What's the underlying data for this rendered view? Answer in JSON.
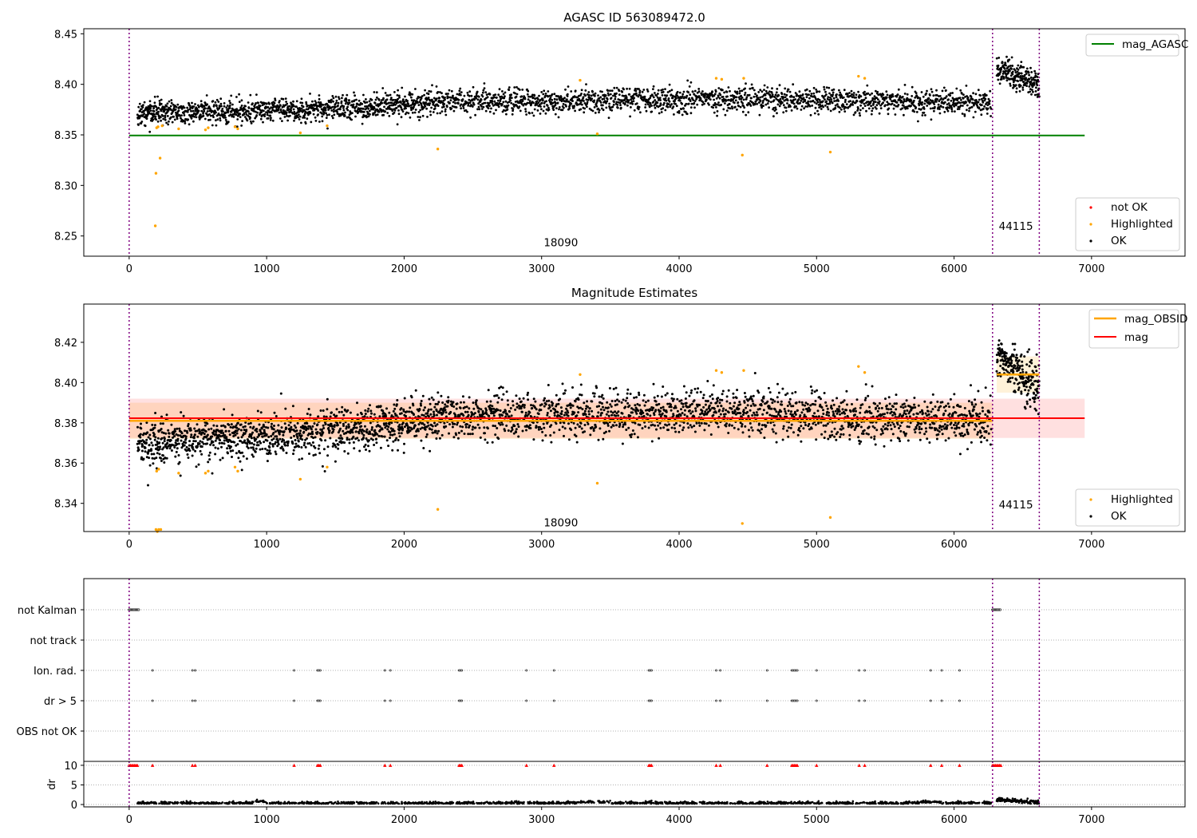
{
  "chart_data": [
    {
      "type": "scatter",
      "title": "AGASC ID 563089472.0",
      "xlim": [
        -330,
        7680
      ],
      "ylim": [
        8.23,
        8.455
      ],
      "xticks": [
        0,
        1000,
        2000,
        3000,
        4000,
        5000,
        6000,
        7000
      ],
      "yticks": [
        8.25,
        8.3,
        8.35,
        8.4,
        8.45
      ],
      "xtick_labels": [
        "0",
        "1000",
        "2000",
        "3000",
        "4000",
        "5000",
        "6000",
        "7000"
      ],
      "ytick_labels": [
        "8.25",
        "8.30",
        "8.35",
        "8.40",
        "8.45"
      ],
      "obsid_boundaries": [
        0,
        6280,
        6620
      ],
      "obsid_labels": [
        {
          "text": "18090",
          "x": 3140,
          "y": 8.24
        },
        {
          "text": "44115",
          "x": 6450,
          "y": 8.256
        }
      ],
      "reference_lines": [
        {
          "name": "mag_AGASC",
          "y": 8.3494,
          "x_range": [
            0,
            6950
          ],
          "color": "#008000"
        }
      ],
      "series": [
        {
          "name": "OK",
          "color": "#000000",
          "segments": [
            {
              "x_range": [
                60,
                300
              ],
              "y_start": 8.372,
              "y_end": 8.373,
              "scatter": 0.006,
              "n": 150
            },
            {
              "x_range": [
                300,
                900
              ],
              "y_start": 8.372,
              "y_end": 8.374,
              "scatter": 0.006,
              "n": 320
            },
            {
              "x_range": [
                900,
                1700
              ],
              "y_start": 8.374,
              "y_end": 8.377,
              "scatter": 0.006,
              "n": 420
            },
            {
              "x_range": [
                1700,
                2300
              ],
              "y_start": 8.378,
              "y_end": 8.383,
              "scatter": 0.006,
              "n": 330
            },
            {
              "x_range": [
                2300,
                4500
              ],
              "y_start": 8.383,
              "y_end": 8.386,
              "scatter": 0.006,
              "n": 1000
            },
            {
              "x_range": [
                4500,
                6270
              ],
              "y_start": 8.385,
              "y_end": 8.382,
              "scatter": 0.006,
              "n": 800
            },
            {
              "x_range": [
                6310,
                6620
              ],
              "y_start": 8.416,
              "y_end": 8.398,
              "scatter": 0.006,
              "n": 220
            }
          ]
        },
        {
          "name": "Highlighted",
          "color": "#FFA500",
          "points": [
            [
              190,
              8.26
            ],
            [
              195,
              8.312
            ],
            [
              200,
              8.357
            ],
            [
              210,
              8.358
            ],
            [
              225,
              8.327
            ],
            [
              240,
              8.359
            ],
            [
              360,
              8.356
            ],
            [
              555,
              8.355
            ],
            [
              575,
              8.357
            ],
            [
              770,
              8.358
            ],
            [
              790,
              8.356
            ],
            [
              1245,
              8.352
            ],
            [
              1440,
              8.359
            ],
            [
              2245,
              8.336
            ],
            [
              3280,
              8.404
            ],
            [
              3405,
              8.351
            ],
            [
              4270,
              8.406
            ],
            [
              4310,
              8.405
            ],
            [
              4460,
              8.33
            ],
            [
              4470,
              8.406
            ],
            [
              5100,
              8.333
            ],
            [
              5305,
              8.408
            ],
            [
              5350,
              8.406
            ]
          ]
        },
        {
          "name": "not OK",
          "color": "#FF0000",
          "points": []
        }
      ],
      "legend_upper": [
        "mag_AGASC"
      ],
      "legend_lower": [
        "not OK",
        "Highlighted",
        "OK"
      ],
      "legend_upper_placement": "upper right",
      "legend_lower_placement": "lower right"
    },
    {
      "type": "scatter",
      "title": "Magnitude Estimates",
      "xlim": [
        -330,
        7680
      ],
      "ylim": [
        8.326,
        8.439
      ],
      "xticks": [
        0,
        1000,
        2000,
        3000,
        4000,
        5000,
        6000,
        7000
      ],
      "yticks": [
        8.34,
        8.36,
        8.38,
        8.4,
        8.42
      ],
      "xtick_labels": [
        "0",
        "1000",
        "2000",
        "3000",
        "4000",
        "5000",
        "6000",
        "7000"
      ],
      "ytick_labels": [
        "8.34",
        "8.36",
        "8.38",
        "8.40",
        "8.42"
      ],
      "obsid_boundaries": [
        0,
        6280,
        6620
      ],
      "obsid_labels": [
        {
          "text": "18090",
          "x": 3140,
          "y": 8.3285
        },
        {
          "text": "44115",
          "x": 6450,
          "y": 8.3375
        }
      ],
      "bands": [
        {
          "name": "mag_OBSID",
          "x_range": [
            0,
            6280
          ],
          "y_range": [
            8.372,
            8.39
          ],
          "color": "#FFA500",
          "opacity": 0.15
        },
        {
          "name": "mag_OBSID",
          "x_range": [
            6310,
            6620
          ],
          "y_range": [
            8.395,
            8.413
          ],
          "color": "#FFA500",
          "opacity": 0.15
        },
        {
          "name": "mag",
          "x_range": [
            0,
            6950
          ],
          "y_range": [
            8.3725,
            8.392
          ],
          "color": "#FF0000",
          "opacity": 0.12
        }
      ],
      "reference_lines": [
        {
          "name": "mag_OBSID",
          "y": 8.381,
          "x_range": [
            0,
            6280
          ],
          "color": "#FFA500"
        },
        {
          "name": "mag_OBSID",
          "y": 8.404,
          "x_range": [
            6310,
            6620
          ],
          "color": "#FFA500"
        },
        {
          "name": "mag",
          "y": 8.3823,
          "x_range": [
            0,
            6950
          ],
          "color": "#FF0000"
        }
      ],
      "series": [
        {
          "name": "OK",
          "color": "#000000",
          "segments": [
            {
              "x_range": [
                60,
                300
              ],
              "y_start": 8.37,
              "y_end": 8.371,
              "scatter": 0.0055,
              "n": 150
            },
            {
              "x_range": [
                300,
                900
              ],
              "y_start": 8.371,
              "y_end": 8.373,
              "scatter": 0.0055,
              "n": 320
            },
            {
              "x_range": [
                900,
                1700
              ],
              "y_start": 8.373,
              "y_end": 8.377,
              "scatter": 0.0055,
              "n": 420
            },
            {
              "x_range": [
                1700,
                2300
              ],
              "y_start": 8.378,
              "y_end": 8.383,
              "scatter": 0.0055,
              "n": 330
            },
            {
              "x_range": [
                2300,
                4500
              ],
              "y_start": 8.383,
              "y_end": 8.386,
              "scatter": 0.0055,
              "n": 1000
            },
            {
              "x_range": [
                4500,
                6270
              ],
              "y_start": 8.385,
              "y_end": 8.38,
              "scatter": 0.0055,
              "n": 800
            },
            {
              "x_range": [
                6310,
                6620
              ],
              "y_start": 8.412,
              "y_end": 8.398,
              "scatter": 0.006,
              "n": 220
            }
          ]
        },
        {
          "name": "Highlighted",
          "color": "#FFA500",
          "points": [
            [
              195,
              8.327
            ],
            [
              205,
              8.326
            ],
            [
              215,
              8.327
            ],
            [
              230,
              8.327
            ],
            [
              200,
              8.356
            ],
            [
              215,
              8.357
            ],
            [
              360,
              8.355
            ],
            [
              555,
              8.355
            ],
            [
              575,
              8.356
            ],
            [
              770,
              8.358
            ],
            [
              790,
              8.356
            ],
            [
              1245,
              8.352
            ],
            [
              1440,
              8.358
            ],
            [
              2245,
              8.337
            ],
            [
              3280,
              8.404
            ],
            [
              3405,
              8.35
            ],
            [
              4270,
              8.406
            ],
            [
              4310,
              8.405
            ],
            [
              4460,
              8.33
            ],
            [
              4470,
              8.406
            ],
            [
              5100,
              8.333
            ],
            [
              5305,
              8.408
            ],
            [
              5350,
              8.405
            ]
          ]
        }
      ],
      "legend_upper": [
        "mag_OBSID",
        "mag"
      ],
      "legend_lower": [
        "Highlighted",
        "OK"
      ],
      "legend_upper_placement": "upper right",
      "legend_lower_placement": "lower right"
    },
    {
      "type": "scatter",
      "title": "",
      "xlim": [
        -330,
        7680
      ],
      "categories": [
        "not Kalman",
        "not track",
        "Ion. rad.",
        "dr > 5",
        "OBS not OK"
      ],
      "obsid_boundaries": [
        0,
        6280,
        6620
      ],
      "flags": {
        "not Kalman": {
          "x_ranges": [
            [
              0,
              70
            ],
            [
              6280,
              6340
            ]
          ]
        },
        "not track": {
          "x_ranges": []
        },
        "Ion. rad.": {
          "x": [
            170,
            460,
            480,
            1200,
            1370,
            1380,
            1390,
            1860,
            1900,
            2400,
            2410,
            2420,
            2890,
            3090,
            3780,
            3790,
            3800,
            4270,
            4300,
            4640,
            4820,
            4830,
            4840,
            4850,
            4860,
            5000,
            5310,
            5350,
            5830,
            5910,
            6040
          ]
        },
        "dr > 5": {
          "x": [
            170,
            460,
            480,
            1200,
            1370,
            1380,
            1390,
            1860,
            1900,
            2400,
            2410,
            2420,
            2890,
            3090,
            3780,
            3790,
            3800,
            4270,
            4300,
            4640,
            4820,
            4830,
            4840,
            4850,
            4860,
            5000,
            5310,
            5350,
            5830,
            5910,
            6040
          ]
        },
        "OBS not OK": {
          "x_ranges": []
        }
      }
    },
    {
      "type": "scatter",
      "title": "",
      "ylabel": "dr",
      "xlim": [
        -330,
        7680
      ],
      "ylim": [
        -0.6,
        11.0
      ],
      "xticks": [
        0,
        1000,
        2000,
        3000,
        4000,
        5000,
        6000,
        7000
      ],
      "yticks": [
        0,
        5,
        10
      ],
      "xtick_labels": [
        "0",
        "1000",
        "2000",
        "3000",
        "4000",
        "5000",
        "6000",
        "7000"
      ],
      "ytick_labels": [
        "0",
        "5",
        "10"
      ],
      "obsid_boundaries": [
        0,
        6280,
        6620
      ],
      "series": [
        {
          "name": "dr",
          "color": "#000000",
          "baseline": 0.2,
          "noise": 0.25,
          "x_range": [
            60,
            6270
          ],
          "n": 1600,
          "late_segment": {
            "x_range": [
              6310,
              6620
            ],
            "y_start": 1.2,
            "y_end": 0.6
          }
        },
        {
          "name": "dr > 5 (clipped)",
          "color": "#FF0000",
          "y": 10,
          "x": [
            0,
            10,
            20,
            30,
            40,
            50,
            60,
            170,
            460,
            480,
            1200,
            1370,
            1380,
            1390,
            1860,
            1900,
            2400,
            2410,
            2420,
            2890,
            3090,
            3780,
            3790,
            3800,
            4270,
            4300,
            4640,
            4820,
            4830,
            4840,
            4850,
            4860,
            5000,
            5310,
            5350,
            5830,
            5910,
            6040,
            6280,
            6290,
            6300,
            6310,
            6320,
            6330,
            6340
          ]
        }
      ]
    }
  ]
}
